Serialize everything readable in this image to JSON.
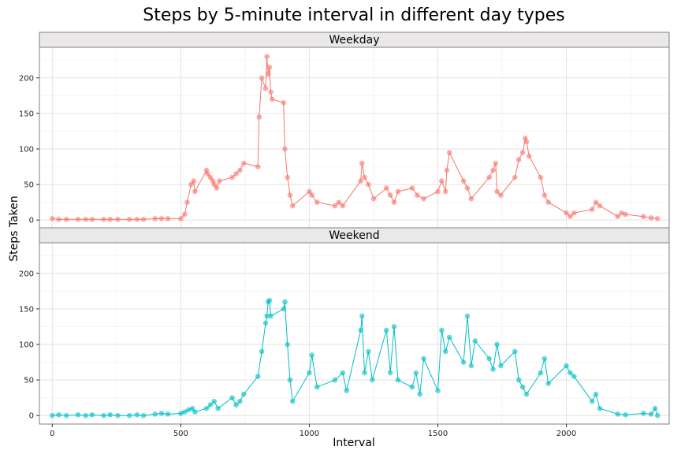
{
  "chart_data": {
    "type": "line",
    "title": "Steps by 5-minute interval in different day types",
    "xlabel": "Interval",
    "ylabel": "Steps Taken",
    "xlim": [
      -50,
      2400
    ],
    "ylim": [
      -12,
      243
    ],
    "x_ticks": [
      0,
      500,
      1000,
      1500,
      2000
    ],
    "y_ticks": [
      0,
      50,
      100,
      150,
      200
    ],
    "grid": true,
    "points_shown": true,
    "series": [
      {
        "name": "Weekday",
        "color": "#F8766D",
        "x": [
          0,
          25,
          55,
          100,
          130,
          155,
          200,
          225,
          255,
          300,
          330,
          355,
          400,
          425,
          450,
          500,
          515,
          525,
          540,
          550,
          555,
          600,
          605,
          615,
          625,
          630,
          640,
          650,
          700,
          715,
          730,
          745,
          800,
          805,
          815,
          830,
          835,
          840,
          845,
          850,
          855,
          900,
          905,
          915,
          925,
          935,
          1000,
          1010,
          1030,
          1100,
          1115,
          1130,
          1200,
          1205,
          1215,
          1230,
          1250,
          1300,
          1315,
          1330,
          1345,
          1400,
          1420,
          1445,
          1500,
          1515,
          1530,
          1535,
          1545,
          1600,
          1615,
          1630,
          1700,
          1715,
          1725,
          1730,
          1745,
          1800,
          1815,
          1830,
          1840,
          1845,
          1855,
          1900,
          1915,
          1930,
          2000,
          2015,
          2030,
          2100,
          2115,
          2130,
          2200,
          2215,
          2230,
          2300,
          2330,
          2355
        ],
        "y": [
          2,
          1,
          1,
          1,
          1,
          1,
          1,
          1,
          1,
          1,
          1,
          1,
          2,
          2,
          2,
          2,
          8,
          25,
          50,
          55,
          40,
          70,
          65,
          60,
          55,
          50,
          45,
          55,
          60,
          65,
          70,
          80,
          75,
          145,
          200,
          185,
          230,
          205,
          215,
          180,
          170,
          165,
          100,
          60,
          35,
          20,
          40,
          35,
          25,
          20,
          25,
          20,
          55,
          80,
          60,
          50,
          30,
          45,
          35,
          25,
          40,
          45,
          35,
          30,
          40,
          55,
          40,
          70,
          95,
          55,
          45,
          30,
          60,
          70,
          80,
          40,
          35,
          60,
          85,
          95,
          115,
          110,
          90,
          60,
          35,
          25,
          10,
          5,
          10,
          15,
          25,
          20,
          5,
          10,
          8,
          5,
          3,
          2
        ]
      },
      {
        "name": "Weekend",
        "color": "#00BFC4",
        "x": [
          0,
          25,
          55,
          100,
          130,
          155,
          200,
          225,
          255,
          300,
          330,
          355,
          400,
          425,
          450,
          500,
          515,
          530,
          545,
          555,
          600,
          615,
          630,
          645,
          700,
          715,
          730,
          745,
          800,
          815,
          830,
          835,
          840,
          845,
          850,
          900,
          905,
          915,
          925,
          935,
          1000,
          1010,
          1030,
          1100,
          1130,
          1145,
          1200,
          1205,
          1215,
          1230,
          1245,
          1300,
          1315,
          1330,
          1345,
          1400,
          1415,
          1430,
          1445,
          1500,
          1515,
          1530,
          1545,
          1600,
          1615,
          1630,
          1645,
          1700,
          1715,
          1730,
          1745,
          1800,
          1815,
          1830,
          1845,
          1900,
          1915,
          1930,
          2000,
          2015,
          2030,
          2100,
          2115,
          2130,
          2200,
          2230,
          2300,
          2330,
          2345,
          2355
        ],
        "y": [
          0,
          1,
          0,
          1,
          0,
          1,
          0,
          1,
          0,
          0,
          1,
          0,
          2,
          3,
          2,
          3,
          5,
          8,
          10,
          5,
          10,
          15,
          20,
          10,
          25,
          15,
          20,
          30,
          55,
          90,
          130,
          140,
          160,
          162,
          140,
          150,
          160,
          100,
          50,
          20,
          60,
          85,
          40,
          50,
          60,
          35,
          120,
          140,
          60,
          90,
          50,
          120,
          60,
          125,
          50,
          40,
          60,
          30,
          80,
          35,
          120,
          90,
          110,
          75,
          140,
          70,
          105,
          80,
          65,
          100,
          70,
          90,
          50,
          40,
          30,
          60,
          80,
          45,
          70,
          60,
          55,
          20,
          30,
          10,
          2,
          1,
          3,
          2,
          10,
          0
        ]
      }
    ]
  }
}
